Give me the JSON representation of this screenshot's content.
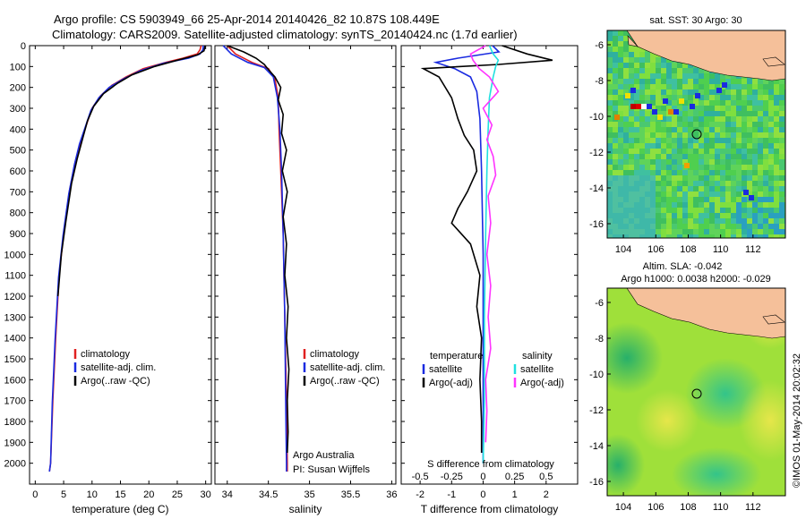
{
  "header": {
    "title_line1": "Argo profile: CS 5903949_66 25-Apr-2014 20140426_82 10.87S 108.449E",
    "title_line2": "Climatology: CARS2009. Satellite-adjusted climatology: synTS_20140424.nc (1.7d earlier)"
  },
  "colors": {
    "climatology": "#e02020",
    "satellite": "#1a2be0",
    "argo": "#000000",
    "sat_salinity": "#20e0e0",
    "argo_salinity": "#ff33ff",
    "land": "#f5c09a"
  },
  "chart_data": [
    {
      "id": "temperature",
      "type": "line",
      "xlabel": "temperature (deg C)",
      "ylabel": "",
      "xlim": [
        -1,
        31
      ],
      "ylim": [
        2100,
        0
      ],
      "xticks": [
        0,
        5,
        10,
        15,
        20,
        25,
        30
      ],
      "yticks": [
        0,
        100,
        200,
        300,
        400,
        500,
        600,
        700,
        800,
        900,
        1000,
        1100,
        1200,
        1300,
        1400,
        1500,
        1600,
        1700,
        1800,
        1900,
        2000
      ],
      "legend": [
        "climatology",
        "satellite-adj. clim.",
        "Argo(..raw -QC)"
      ],
      "series": [
        {
          "name": "climatology",
          "color": "red",
          "points": [
            [
              29.2,
              0
            ],
            [
              29.0,
              20
            ],
            [
              28.5,
              40
            ],
            [
              26,
              60
            ],
            [
              23,
              80
            ],
            [
              19,
              110
            ],
            [
              16,
              150
            ],
            [
              13.5,
              190
            ],
            [
              11.5,
              240
            ],
            [
              10,
              300
            ],
            [
              9,
              380
            ],
            [
              8,
              460
            ],
            [
              7,
              560
            ],
            [
              6,
              700
            ],
            [
              5,
              900
            ],
            [
              4.2,
              1100
            ],
            [
              3.6,
              1400
            ],
            [
              3.1,
              1700
            ],
            [
              2.7,
              2000
            ],
            [
              2.5,
              2040
            ]
          ]
        },
        {
          "name": "satellite-adj. clim.",
          "color": "blue",
          "points": [
            [
              29.6,
              0
            ],
            [
              29.5,
              20
            ],
            [
              29,
              40
            ],
            [
              27,
              60
            ],
            [
              22.5,
              85
            ],
            [
              18.5,
              120
            ],
            [
              15.5,
              160
            ],
            [
              13,
              200
            ],
            [
              11.2,
              250
            ],
            [
              9.8,
              310
            ],
            [
              8.8,
              390
            ],
            [
              7.8,
              470
            ],
            [
              6.9,
              570
            ],
            [
              5.9,
              710
            ],
            [
              4.9,
              910
            ],
            [
              4.1,
              1110
            ],
            [
              3.5,
              1410
            ],
            [
              3.0,
              1710
            ],
            [
              2.7,
              2000
            ],
            [
              2.5,
              2040
            ]
          ]
        },
        {
          "name": "Argo(..raw -QC)",
          "color": "black",
          "points": [
            [
              29.9,
              0
            ],
            [
              29.7,
              25
            ],
            [
              28.5,
              45
            ],
            [
              25,
              70
            ],
            [
              21,
              100
            ],
            [
              17,
              140
            ],
            [
              14.5,
              180
            ],
            [
              12,
              230
            ],
            [
              10.3,
              290
            ],
            [
              9.2,
              360
            ],
            [
              8.4,
              440
            ],
            [
              7.4,
              540
            ],
            [
              6.4,
              660
            ],
            [
              5.4,
              840
            ],
            [
              4.6,
              1000
            ],
            [
              4.0,
              1200
            ]
          ]
        }
      ]
    },
    {
      "id": "salinity",
      "type": "line",
      "xlabel": "salinity",
      "xlim": [
        33.85,
        36.05
      ],
      "ylim": [
        2100,
        0
      ],
      "xticks": [
        34,
        34.5,
        35,
        35.5,
        36
      ],
      "legend": [
        "climatology",
        "satellite-adj. clim.",
        "Argo(..raw -QC)"
      ],
      "annotation": [
        "Argo Australia",
        "PI: Susan Wijffels"
      ],
      "series": [
        {
          "name": "climatology",
          "color": "red",
          "points": [
            [
              34.0,
              0
            ],
            [
              34.1,
              40
            ],
            [
              34.3,
              80
            ],
            [
              34.5,
              110
            ],
            [
              34.58,
              160
            ],
            [
              34.62,
              250
            ],
            [
              34.63,
              400
            ],
            [
              34.65,
              600
            ],
            [
              34.68,
              900
            ],
            [
              34.7,
              1300
            ],
            [
              34.72,
              1700
            ],
            [
              34.73,
              2000
            ],
            [
              34.73,
              2040
            ]
          ]
        },
        {
          "name": "satellite-adj. clim.",
          "color": "blue",
          "points": [
            [
              33.95,
              0
            ],
            [
              34.05,
              40
            ],
            [
              34.25,
              80
            ],
            [
              34.45,
              105
            ],
            [
              34.56,
              150
            ],
            [
              34.61,
              250
            ],
            [
              34.64,
              400
            ],
            [
              34.66,
              600
            ],
            [
              34.68,
              900
            ],
            [
              34.7,
              1300
            ],
            [
              34.71,
              1700
            ],
            [
              34.72,
              2000
            ],
            [
              34.72,
              2040
            ]
          ]
        },
        {
          "name": "Argo(..raw -QC)",
          "color": "black",
          "points": [
            [
              34.0,
              0
            ],
            [
              34.2,
              30
            ],
            [
              34.35,
              60
            ],
            [
              34.45,
              90
            ],
            [
              34.5,
              115
            ],
            [
              34.58,
              150
            ],
            [
              34.65,
              200
            ],
            [
              34.62,
              260
            ],
            [
              34.68,
              330
            ],
            [
              34.66,
              420
            ],
            [
              34.72,
              500
            ],
            [
              34.67,
              600
            ],
            [
              34.73,
              700
            ],
            [
              34.68,
              820
            ],
            [
              34.72,
              950
            ],
            [
              34.7,
              1100
            ],
            [
              34.74,
              1250
            ],
            [
              34.72,
              1400
            ],
            [
              34.75,
              1550
            ],
            [
              34.73,
              1700
            ],
            [
              34.74,
              1850
            ],
            [
              34.73,
              1950
            ]
          ]
        }
      ]
    },
    {
      "id": "differences",
      "type": "line",
      "xlabel": "T difference from climatology",
      "x2label": "S difference from climatology",
      "xlim": [
        -2.6,
        3.0
      ],
      "ylim": [
        2100,
        0
      ],
      "xticks": [
        -2,
        -1,
        0,
        1,
        2
      ],
      "x2ticks": [
        -0.5,
        -0.25,
        0,
        0.25,
        0.5
      ],
      "x2ticklabels": [
        "-0.5",
        "-0.25",
        "0",
        "0.25",
        "0.5"
      ],
      "legend_groups": [
        {
          "title": "temperature",
          "items": [
            "satellite",
            "Argo(-adj)"
          ]
        },
        {
          "title": "salinity",
          "items": [
            "satellite",
            "Argo(-adj)"
          ]
        }
      ],
      "series": [
        {
          "name": "T satellite",
          "color": "blue",
          "points": [
            [
              0.3,
              0
            ],
            [
              0.5,
              30
            ],
            [
              -0.8,
              60
            ],
            [
              -1.5,
              80
            ],
            [
              -0.9,
              110
            ],
            [
              -0.4,
              150
            ],
            [
              -0.2,
              220
            ],
            [
              -0.1,
              350
            ],
            [
              -0.05,
              600
            ],
            [
              0,
              1000
            ],
            [
              0,
              1500
            ],
            [
              0,
              2000
            ]
          ]
        },
        {
          "name": "T Argo(-adj)",
          "color": "black",
          "points": [
            [
              0.6,
              0
            ],
            [
              1.4,
              40
            ],
            [
              2.2,
              70
            ],
            [
              0.5,
              90
            ],
            [
              -1.9,
              110
            ],
            [
              -1.4,
              150
            ],
            [
              -1.0,
              250
            ],
            [
              -0.8,
              350
            ],
            [
              -0.6,
              430
            ],
            [
              -0.3,
              500
            ],
            [
              -0.2,
              600
            ],
            [
              -0.5,
              700
            ],
            [
              -0.8,
              780
            ],
            [
              -1.0,
              850
            ],
            [
              -0.4,
              950
            ],
            [
              -0.1,
              1100
            ],
            [
              -0.2,
              1250
            ],
            [
              -0.05,
              1400
            ],
            [
              -0.1,
              1600
            ],
            [
              -0.05,
              1800
            ],
            [
              -0.05,
              1950
            ]
          ]
        },
        {
          "name": "S satellite",
          "color": "cyan",
          "points": [
            [
              0.05,
              0
            ],
            [
              0.08,
              40
            ],
            [
              0.12,
              70
            ],
            [
              0.1,
              100
            ],
            [
              0.08,
              150
            ],
            [
              0.05,
              250
            ],
            [
              0.04,
              400
            ],
            [
              0.03,
              600
            ],
            [
              0.02,
              900
            ],
            [
              0.01,
              1300
            ],
            [
              0.01,
              1700
            ],
            [
              0.0,
              2000
            ]
          ]
        },
        {
          "name": "S Argo(-adj)",
          "color": "magenta",
          "points": [
            [
              0.02,
              0
            ],
            [
              -0.1,
              40
            ],
            [
              -0.08,
              70
            ],
            [
              -0.03,
              110
            ],
            [
              0.05,
              150
            ],
            [
              0.12,
              220
            ],
            [
              0.0,
              300
            ],
            [
              0.07,
              380
            ],
            [
              0.03,
              450
            ],
            [
              0.08,
              530
            ],
            [
              0.1,
              620
            ],
            [
              0.04,
              720
            ],
            [
              0.06,
              850
            ],
            [
              0.03,
              1000
            ],
            [
              0.06,
              1150
            ],
            [
              0.04,
              1300
            ],
            [
              0.06,
              1450
            ],
            [
              0.02,
              1600
            ],
            [
              0.03,
              1750
            ],
            [
              0.02,
              1900
            ]
          ]
        }
      ]
    },
    {
      "id": "sst-map",
      "type": "heatmap",
      "title": "sat. SST: 30 Argo: 30",
      "xticks": [
        104,
        106,
        108,
        110,
        112
      ],
      "yticks": [
        -6,
        -8,
        -10,
        -12,
        -14,
        -16
      ],
      "xlim": [
        103,
        114
      ],
      "ylim": [
        -16.8,
        -5.2
      ],
      "marker": {
        "lon": 108.449,
        "lat": -10.87
      }
    },
    {
      "id": "sla-map",
      "type": "heatmap",
      "title_line1": "Altim. SLA: -0.042",
      "title_line2": "Argo h1000: 0.0038 h2000: -0.029",
      "xticks": [
        104,
        106,
        108,
        110,
        112
      ],
      "yticks": [
        -6,
        -8,
        -10,
        -12,
        -14,
        -16
      ],
      "xlim": [
        103,
        114
      ],
      "ylim": [
        -16.8,
        -5.2
      ],
      "marker": {
        "lon": 108.449,
        "lat": -10.87
      }
    }
  ],
  "footer": {
    "stamp": "©IMOS 01-May-2014 20:02:32"
  }
}
